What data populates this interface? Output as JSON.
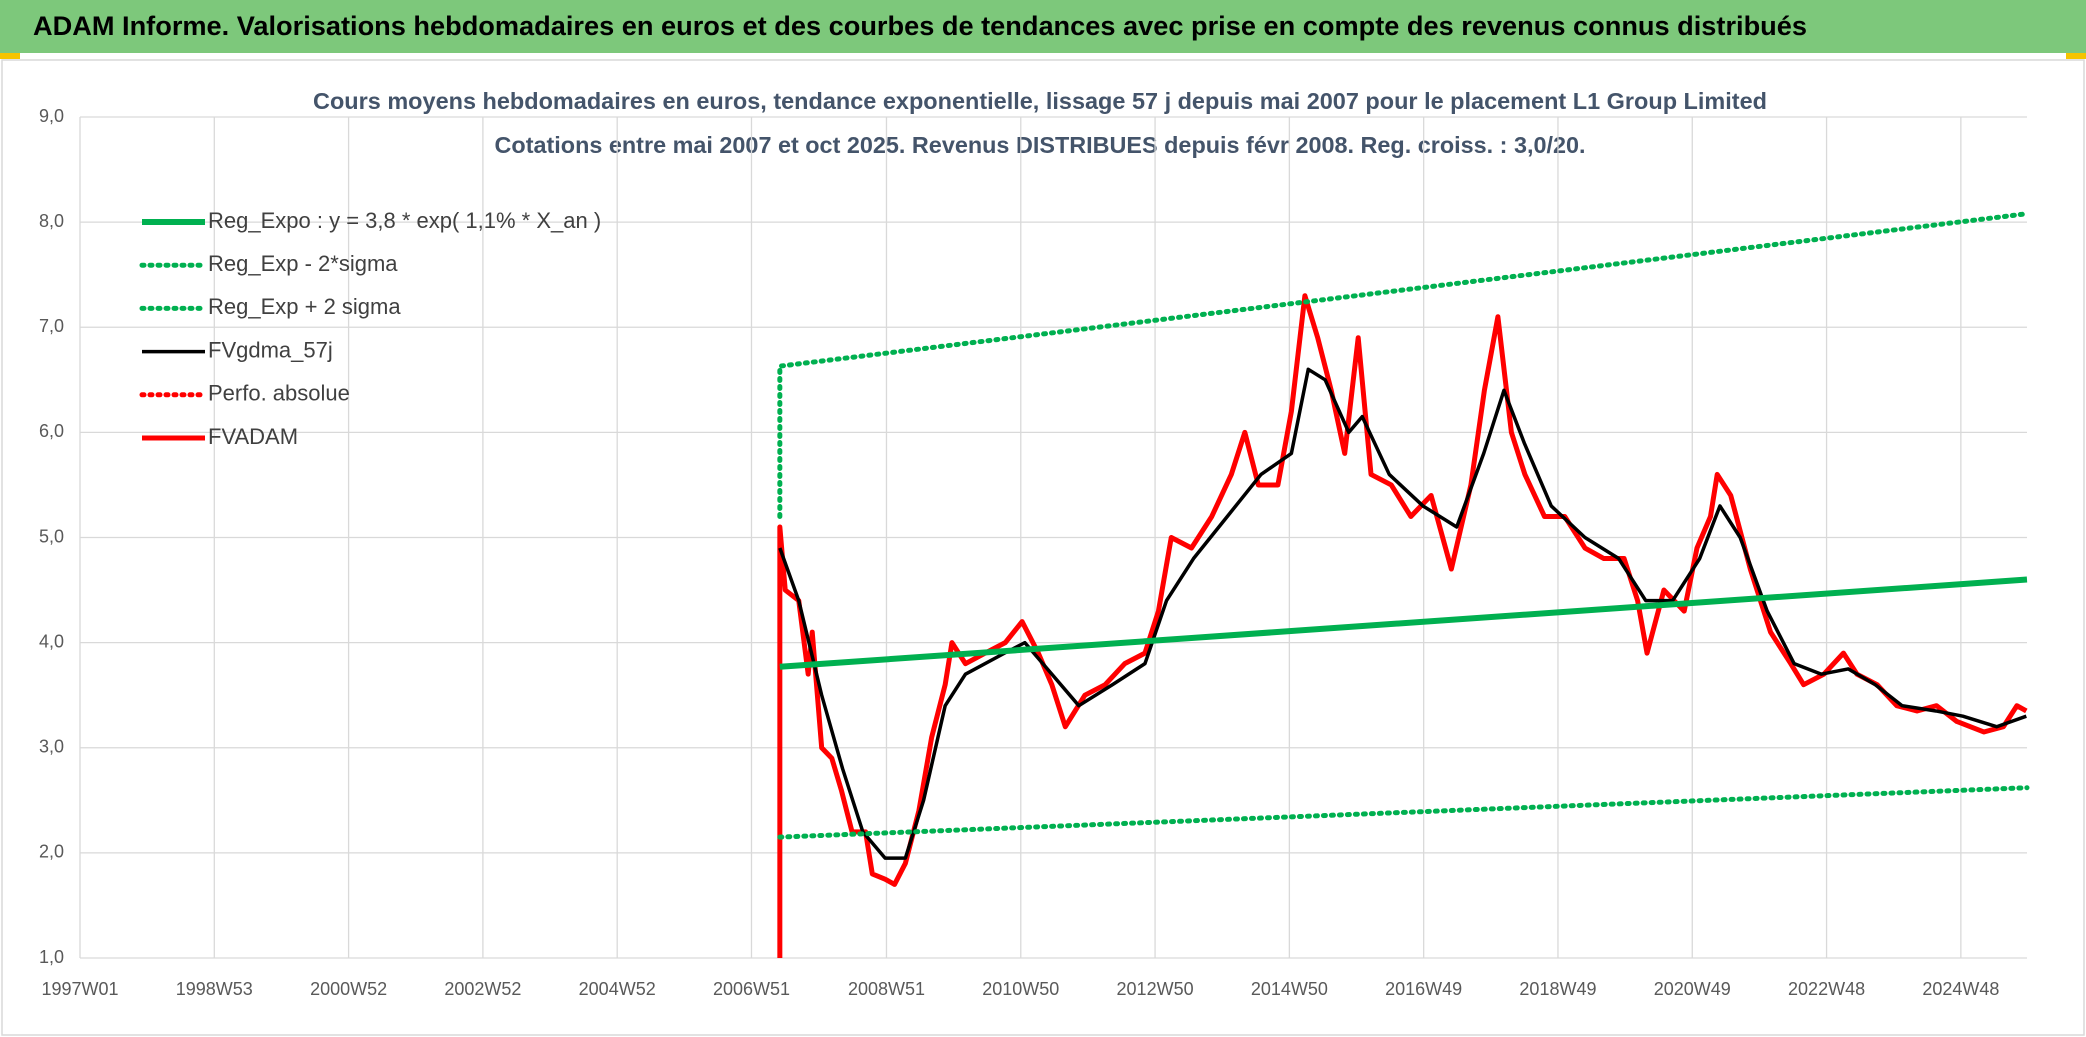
{
  "header": {
    "title": "ADAM Informe. Valorisations hebdomadaires en euros et des courbes de tendances avec prise en compte des revenus connus distribués"
  },
  "chart_data": {
    "type": "line",
    "title": "Cours moyens hebdomadaires en euros, tendance exponentielle, lissage 57 j depuis mai 2007 pour le placement L1 Group Limited",
    "subtitle": "Cotations entre mai 2007 et oct 2025. Revenus DISTRIBUES depuis févr 2008. Reg. croiss. : 3,0/20.",
    "xlim": [
      1997.0,
      2025.85
    ],
    "xticks": [
      {
        "value": 1997.0,
        "label": "1997W01"
      },
      {
        "value": 1998.99,
        "label": "1998W53"
      },
      {
        "value": 2000.98,
        "label": "2000W52"
      },
      {
        "value": 2002.97,
        "label": "2002W52"
      },
      {
        "value": 2004.96,
        "label": "2004W52"
      },
      {
        "value": 2006.95,
        "label": "2006W51"
      },
      {
        "value": 2008.95,
        "label": "2008W51"
      },
      {
        "value": 2010.94,
        "label": "2010W50"
      },
      {
        "value": 2012.93,
        "label": "2012W50"
      },
      {
        "value": 2014.92,
        "label": "2014W50"
      },
      {
        "value": 2016.91,
        "label": "2016W49"
      },
      {
        "value": 2018.9,
        "label": "2018W49"
      },
      {
        "value": 2020.89,
        "label": "2020W49"
      },
      {
        "value": 2022.88,
        "label": "2022W48"
      },
      {
        "value": 2024.87,
        "label": "2024W48"
      }
    ],
    "ylim": [
      1.0,
      9.0
    ],
    "yticks": [
      {
        "value": 1,
        "label": "1,0"
      },
      {
        "value": 2,
        "label": "2,0"
      },
      {
        "value": 3,
        "label": "3,0"
      },
      {
        "value": 4,
        "label": "4,0"
      },
      {
        "value": 5,
        "label": "5,0"
      },
      {
        "value": 6,
        "label": "6,0"
      },
      {
        "value": 7,
        "label": "7,0"
      },
      {
        "value": 8,
        "label": "8,0"
      },
      {
        "value": 9,
        "label": "9,0"
      }
    ],
    "grid": true,
    "legend": "top-left",
    "series": [
      {
        "name": "Reg_Expo : y = 3,8 * exp( 1,1% *  X_an )",
        "color": "#00b050",
        "style": "solid",
        "x": [
          2007.37,
          2025.85
        ],
        "values": [
          3.77,
          4.6
        ]
      },
      {
        "name": "Reg_Exp - 2*sigma",
        "color": "#00b050",
        "style": "dotted",
        "x": [
          2007.37,
          2025.85
        ],
        "values": [
          2.15,
          2.62
        ]
      },
      {
        "name": "Reg_Exp + 2 sigma",
        "color": "#00b050",
        "style": "dotted",
        "x": [
          2007.37,
          2007.37,
          2025.85
        ],
        "values": [
          5.2,
          6.63,
          8.08
        ]
      },
      {
        "name": "FVgdma_57j",
        "color": "#000000",
        "style": "solid",
        "x": [
          2007.37,
          2007.65,
          2007.99,
          2008.3,
          2008.6,
          2008.93,
          2009.23,
          2009.5,
          2009.82,
          2010.12,
          2010.7,
          2011.0,
          2011.4,
          2011.8,
          2012.3,
          2012.78,
          2013.1,
          2013.5,
          2014.0,
          2014.5,
          2014.95,
          2015.2,
          2015.45,
          2015.8,
          2016.0,
          2016.4,
          2016.9,
          2017.4,
          2017.8,
          2018.1,
          2018.4,
          2018.8,
          2019.3,
          2019.8,
          2020.2,
          2020.6,
          2021.0,
          2021.3,
          2021.6,
          2022.0,
          2022.4,
          2022.8,
          2023.2,
          2023.6,
          2024.0,
          2024.5,
          2024.9,
          2025.4,
          2025.84
        ],
        "values": [
          4.9,
          4.4,
          3.5,
          2.8,
          2.2,
          1.95,
          1.95,
          2.5,
          3.4,
          3.7,
          3.9,
          4.0,
          3.7,
          3.4,
          3.6,
          3.8,
          4.4,
          4.8,
          5.2,
          5.6,
          5.8,
          6.6,
          6.5,
          6.0,
          6.15,
          5.6,
          5.3,
          5.1,
          5.8,
          6.4,
          5.9,
          5.3,
          5.0,
          4.8,
          4.4,
          4.4,
          4.8,
          5.3,
          5.0,
          4.3,
          3.8,
          3.7,
          3.75,
          3.6,
          3.4,
          3.35,
          3.3,
          3.2,
          3.3
        ]
      },
      {
        "name": "Perfo. absolue",
        "color": "#ff0000",
        "style": "dotted",
        "x": [],
        "values": []
      },
      {
        "name": "FVADAM",
        "color": "#ff0000",
        "style": "solid",
        "x": [
          2007.37,
          2007.37,
          2007.45,
          2007.65,
          2007.79,
          2007.85,
          2007.99,
          2008.14,
          2008.28,
          2008.44,
          2008.64,
          2008.74,
          2008.93,
          2009.07,
          2009.23,
          2009.43,
          2009.62,
          2009.82,
          2009.92,
          2010.12,
          2010.41,
          2010.71,
          2010.96,
          2011.2,
          2011.4,
          2011.6,
          2011.89,
          2012.19,
          2012.48,
          2012.78,
          2012.98,
          2013.17,
          2013.47,
          2013.77,
          2014.06,
          2014.26,
          2014.46,
          2014.75,
          2014.95,
          2015.15,
          2015.34,
          2015.54,
          2015.74,
          2015.94,
          2016.13,
          2016.43,
          2016.72,
          2017.02,
          2017.32,
          2017.61,
          2017.81,
          2018.01,
          2018.21,
          2018.41,
          2018.7,
          2019.0,
          2019.3,
          2019.58,
          2019.88,
          2020.08,
          2020.22,
          2020.47,
          2020.77,
          2020.96,
          2021.16,
          2021.26,
          2021.46,
          2021.75,
          2022.05,
          2022.35,
          2022.54,
          2022.84,
          2023.13,
          2023.33,
          2023.63,
          2023.92,
          2024.22,
          2024.51,
          2024.81,
          2025.21,
          2025.5,
          2025.7,
          2025.84
        ],
        "values": [
          1.0,
          5.1,
          4.5,
          4.4,
          3.7,
          4.1,
          3.0,
          2.9,
          2.6,
          2.2,
          2.2,
          1.8,
          1.75,
          1.7,
          1.9,
          2.4,
          3.1,
          3.6,
          4.0,
          3.8,
          3.9,
          4.0,
          4.2,
          3.9,
          3.6,
          3.2,
          3.5,
          3.6,
          3.8,
          3.9,
          4.3,
          5.0,
          4.9,
          5.2,
          5.6,
          6.0,
          5.5,
          5.5,
          6.2,
          7.3,
          6.9,
          6.4,
          5.8,
          6.9,
          5.6,
          5.5,
          5.2,
          5.4,
          4.7,
          5.5,
          6.4,
          7.1,
          6.0,
          5.6,
          5.2,
          5.2,
          4.9,
          4.8,
          4.8,
          4.4,
          3.9,
          4.5,
          4.3,
          4.9,
          5.2,
          5.6,
          5.4,
          4.7,
          4.1,
          3.8,
          3.6,
          3.7,
          3.9,
          3.7,
          3.6,
          3.4,
          3.35,
          3.4,
          3.25,
          3.15,
          3.2,
          3.4,
          3.35
        ]
      }
    ]
  }
}
